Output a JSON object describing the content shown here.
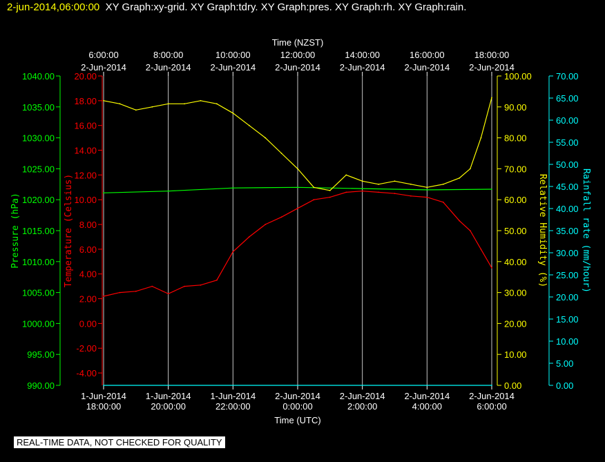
{
  "header": {
    "timestamp": "2-jun-2014,06:00:00",
    "graphs": "XY Graph:xy-grid.  XY Graph:tdry.  XY Graph:pres.  XY Graph:rh.  XY Graph:rain."
  },
  "footer_note": "REAL-TIME DATA, NOT CHECKED FOR QUALITY",
  "colors": {
    "background": "#000000",
    "grid": "#c8c8c8",
    "pressure": "#00ff00",
    "temperature": "#ff0000",
    "humidity": "#ffff00",
    "rain": "#00ffff",
    "text": "#ffffff"
  },
  "chart_data": {
    "type": "line",
    "top_axis": {
      "label": "Time (NZST)",
      "ticks": [
        {
          "time": "6:00:00",
          "date": "2-Jun-2014"
        },
        {
          "time": "8:00:00",
          "date": "2-Jun-2014"
        },
        {
          "time": "10:00:00",
          "date": "2-Jun-2014"
        },
        {
          "time": "12:00:00",
          "date": "2-Jun-2014"
        },
        {
          "time": "14:00:00",
          "date": "2-Jun-2014"
        },
        {
          "time": "16:00:00",
          "date": "2-Jun-2014"
        },
        {
          "time": "18:00:00",
          "date": "2-Jun-2014"
        }
      ]
    },
    "bottom_axis": {
      "label": "Time (UTC)",
      "range": [
        "2014-06-01 18:00",
        "2014-06-02 06:00"
      ],
      "ticks": [
        {
          "date": "1-Jun-2014",
          "time": "18:00:00"
        },
        {
          "date": "1-Jun-2014",
          "time": "20:00:00"
        },
        {
          "date": "1-Jun-2014",
          "time": "22:00:00"
        },
        {
          "date": "2-Jun-2014",
          "time": "0:00:00"
        },
        {
          "date": "2-Jun-2014",
          "time": "2:00:00"
        },
        {
          "date": "2-Jun-2014",
          "time": "4:00:00"
        },
        {
          "date": "2-Jun-2014",
          "time": "6:00:00"
        }
      ]
    },
    "grid": true,
    "axes": {
      "pressure": {
        "label": "Pressure (hPa)",
        "range": [
          990,
          1040
        ],
        "ticks": [
          "1040.00",
          "1035.00",
          "1030.00",
          "1025.00",
          "1020.00",
          "1015.00",
          "1010.00",
          "1005.00",
          "1000.00",
          "995.00",
          "990.00"
        ]
      },
      "temperature": {
        "label": "Temperature (Celsius)",
        "range": [
          -5,
          20
        ],
        "ticks": [
          "20.00",
          "18.00",
          "16.00",
          "14.00",
          "12.00",
          "10.00",
          "8.00",
          "6.00",
          "4.00",
          "2.00",
          "0.00",
          "-2.00",
          "-4.00"
        ]
      },
      "humidity": {
        "label": "Relative Humidity (%)",
        "range": [
          0,
          100
        ],
        "ticks": [
          "100.00",
          "90.00",
          "80.00",
          "70.00",
          "60.00",
          "50.00",
          "40.00",
          "30.00",
          "20.00",
          "10.00",
          "0.00"
        ]
      },
      "rain": {
        "label": "Rainfall rate (mm/hour)",
        "range": [
          0,
          70
        ],
        "ticks": [
          "70.00",
          "65.00",
          "60.00",
          "55.00",
          "50.00",
          "45.00",
          "40.00",
          "35.00",
          "30.00",
          "25.00",
          "20.00",
          "15.00",
          "10.00",
          "5.00",
          "0.00"
        ]
      }
    },
    "series": [
      {
        "name": "tdry",
        "axis": "temperature",
        "x": [
          "2014-06-01 18:00",
          "2014-06-01 18:30",
          "2014-06-01 19:00",
          "2014-06-01 19:30",
          "2014-06-01 20:00",
          "2014-06-01 20:30",
          "2014-06-01 21:00",
          "2014-06-01 21:30",
          "2014-06-01 22:00",
          "2014-06-01 22:30",
          "2014-06-01 23:00",
          "2014-06-01 23:30",
          "2014-06-02 00:00",
          "2014-06-02 00:30",
          "2014-06-02 01:00",
          "2014-06-02 01:30",
          "2014-06-02 02:00",
          "2014-06-02 02:30",
          "2014-06-02 03:00",
          "2014-06-02 03:30",
          "2014-06-02 04:00",
          "2014-06-02 04:30",
          "2014-06-02 05:00",
          "2014-06-02 05:20",
          "2014-06-02 05:40",
          "2014-06-02 06:00"
        ],
        "y": [
          2.2,
          2.5,
          2.6,
          3.0,
          2.4,
          3.0,
          3.1,
          3.5,
          5.8,
          7.0,
          8.0,
          8.6,
          9.3,
          10.0,
          10.2,
          10.6,
          10.7,
          10.6,
          10.5,
          10.3,
          10.2,
          9.8,
          8.3,
          7.5,
          6.0,
          4.5
        ]
      },
      {
        "name": "pres",
        "axis": "pressure",
        "x": [
          "2014-06-01 18:00",
          "2014-06-01 20:00",
          "2014-06-01 22:00",
          "2014-06-02 00:00",
          "2014-06-02 02:00",
          "2014-06-02 04:00",
          "2014-06-02 06:00"
        ],
        "y": [
          1021.1,
          1021.4,
          1021.9,
          1022.0,
          1021.8,
          1021.6,
          1021.7
        ]
      },
      {
        "name": "rh",
        "axis": "humidity",
        "x": [
          "2014-06-01 18:00",
          "2014-06-01 18:30",
          "2014-06-01 19:00",
          "2014-06-01 19:30",
          "2014-06-01 20:00",
          "2014-06-01 20:30",
          "2014-06-01 21:00",
          "2014-06-01 21:30",
          "2014-06-01 22:00",
          "2014-06-01 22:30",
          "2014-06-01 23:00",
          "2014-06-01 23:30",
          "2014-06-02 00:00",
          "2014-06-02 00:30",
          "2014-06-02 01:00",
          "2014-06-02 01:30",
          "2014-06-02 02:00",
          "2014-06-02 02:30",
          "2014-06-02 03:00",
          "2014-06-02 03:30",
          "2014-06-02 04:00",
          "2014-06-02 04:30",
          "2014-06-02 05:00",
          "2014-06-02 05:20",
          "2014-06-02 05:40",
          "2014-06-02 06:00"
        ],
        "y": [
          92,
          91,
          89,
          90,
          91,
          91,
          92,
          91,
          88,
          84,
          80,
          75,
          70,
          64,
          63,
          68,
          66,
          65,
          66,
          65,
          64,
          65,
          67,
          70,
          80,
          93
        ]
      },
      {
        "name": "rain",
        "axis": "rain",
        "x": [
          "2014-06-01 18:00",
          "2014-06-02 06:00"
        ],
        "y": [
          0,
          0
        ]
      }
    ]
  }
}
